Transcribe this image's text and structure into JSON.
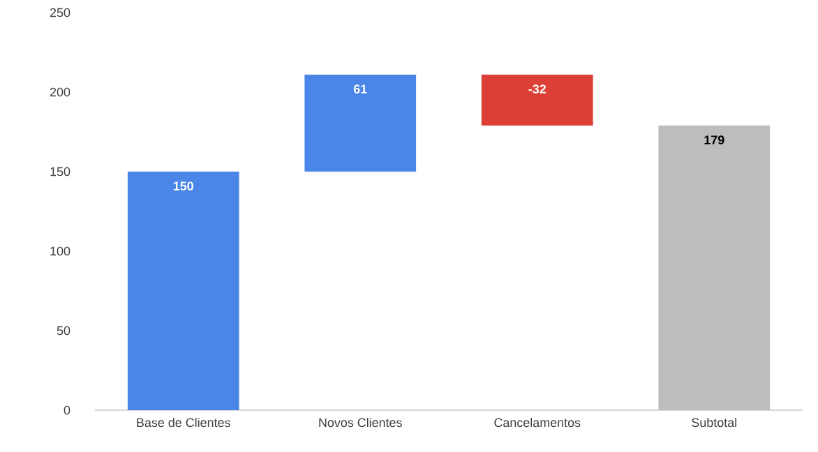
{
  "chart_data": {
    "type": "bar",
    "categories": [
      "Base de Clientes",
      "Novos Clientes",
      "Cancelamentos",
      "Subtotal"
    ],
    "values": [
      150,
      61,
      -32,
      179
    ],
    "base": [
      0,
      150,
      211,
      0
    ],
    "colors": [
      "#4a86e8",
      "#4a86e8",
      "#dc3f36",
      "#bdbdbd"
    ],
    "ylim": [
      0,
      250
    ],
    "yticks": [
      0,
      50,
      100,
      150,
      200,
      250
    ],
    "data_labels": true,
    "grid": false
  }
}
